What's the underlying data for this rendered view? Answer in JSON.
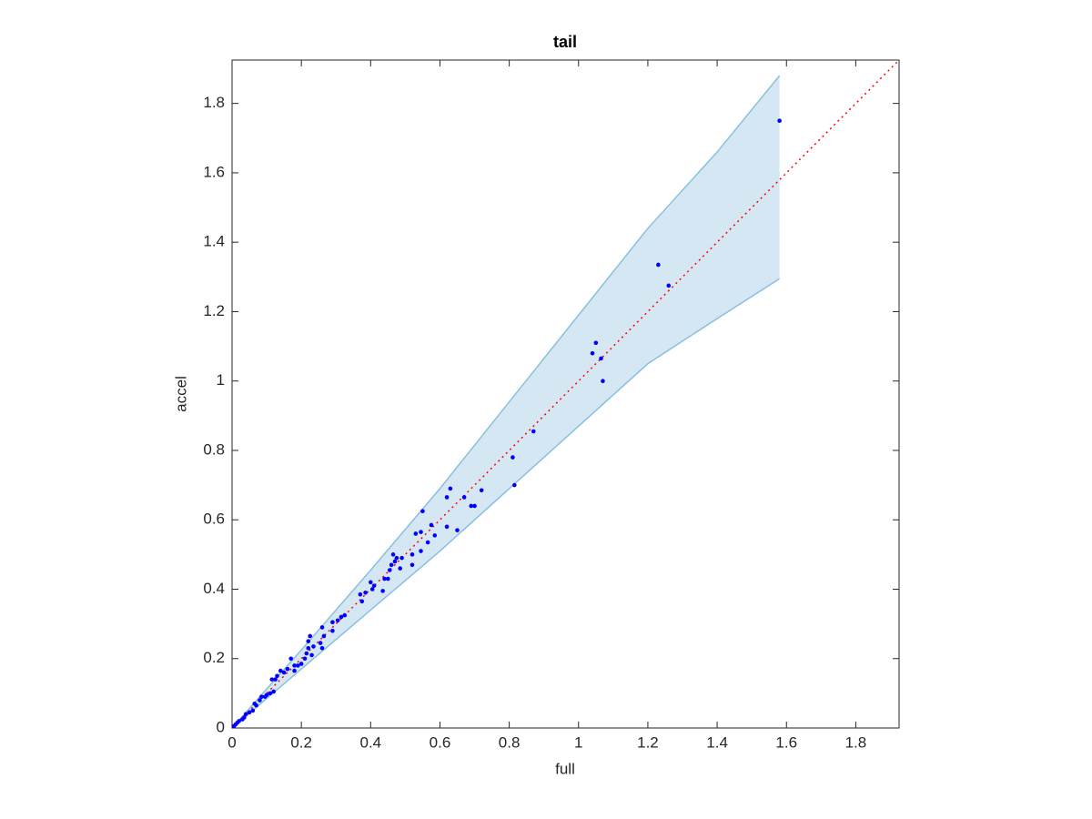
{
  "chart_data": {
    "type": "scatter",
    "title": "tail",
    "x_label": "full",
    "y_label": "accel",
    "xlim": [
      0,
      1.925
    ],
    "ylim": [
      0,
      1.925
    ],
    "xticks": [
      0,
      0.2,
      0.4,
      0.6,
      0.8,
      1,
      1.2,
      1.4,
      1.6,
      1.8
    ],
    "yticks": [
      0,
      0.2,
      0.4,
      0.6,
      0.8,
      1,
      1.2,
      1.4,
      1.6,
      1.8
    ],
    "band": {
      "fill": "#d6e7f4",
      "edge": "#88bfe0",
      "x": [
        0,
        0.2,
        0.4,
        0.6,
        0.8,
        1.0,
        1.2,
        1.4,
        1.58
      ],
      "lower": [
        0,
        0.17,
        0.34,
        0.51,
        0.69,
        0.87,
        1.05,
        1.18,
        1.295
      ],
      "upper": [
        0,
        0.225,
        0.455,
        0.69,
        0.94,
        1.19,
        1.44,
        1.66,
        1.88
      ]
    },
    "reference_line": {
      "color": "#ff0000",
      "x": [
        0,
        1.925
      ],
      "y": [
        0,
        1.925
      ]
    },
    "color": "#0000ff",
    "x": [
      1.58,
      1.23,
      1.26,
      1.05,
      1.04,
      1.065,
      1.07,
      0.87,
      0.81,
      0.815,
      0.72,
      0.69,
      0.7,
      0.67,
      0.63,
      0.62,
      0.62,
      0.65,
      0.55,
      0.575,
      0.585,
      0.565,
      0.545,
      0.53,
      0.545,
      0.52,
      0.52,
      0.49,
      0.475,
      0.465,
      0.47,
      0.46,
      0.485,
      0.455,
      0.45,
      0.44,
      0.435,
      0.41,
      0.4,
      0.405,
      0.385,
      0.37,
      0.375,
      0.325,
      0.315,
      0.305,
      0.29,
      0.29,
      0.26,
      0.265,
      0.255,
      0.26,
      0.235,
      0.23,
      0.225,
      0.22,
      0.22,
      0.215,
      0.21,
      0.2,
      0.19,
      0.18,
      0.18,
      0.17,
      0.16,
      0.15,
      0.14,
      0.13,
      0.125,
      0.115,
      0.12,
      0.11,
      0.1,
      0.095,
      0.085,
      0.08,
      0.07,
      0.065,
      0.06,
      0.05,
      0.04,
      0.035,
      0.03,
      0.02,
      0.015,
      0.01,
      0.005
    ],
    "values": [
      1.75,
      1.335,
      1.275,
      1.11,
      1.08,
      1.065,
      1.0,
      0.855,
      0.78,
      0.7,
      0.685,
      0.64,
      0.64,
      0.665,
      0.69,
      0.665,
      0.58,
      0.57,
      0.625,
      0.585,
      0.555,
      0.535,
      0.565,
      0.56,
      0.51,
      0.5,
      0.47,
      0.49,
      0.49,
      0.5,
      0.48,
      0.47,
      0.46,
      0.455,
      0.43,
      0.43,
      0.395,
      0.41,
      0.42,
      0.4,
      0.39,
      0.385,
      0.365,
      0.325,
      0.32,
      0.31,
      0.305,
      0.28,
      0.29,
      0.265,
      0.245,
      0.23,
      0.235,
      0.21,
      0.265,
      0.25,
      0.23,
      0.215,
      0.2,
      0.185,
      0.18,
      0.18,
      0.165,
      0.2,
      0.17,
      0.16,
      0.165,
      0.15,
      0.14,
      0.14,
      0.105,
      0.1,
      0.095,
      0.09,
      0.09,
      0.08,
      0.065,
      0.07,
      0.05,
      0.045,
      0.04,
      0.03,
      0.025,
      0.02,
      0.015,
      0.01,
      0.005
    ]
  }
}
